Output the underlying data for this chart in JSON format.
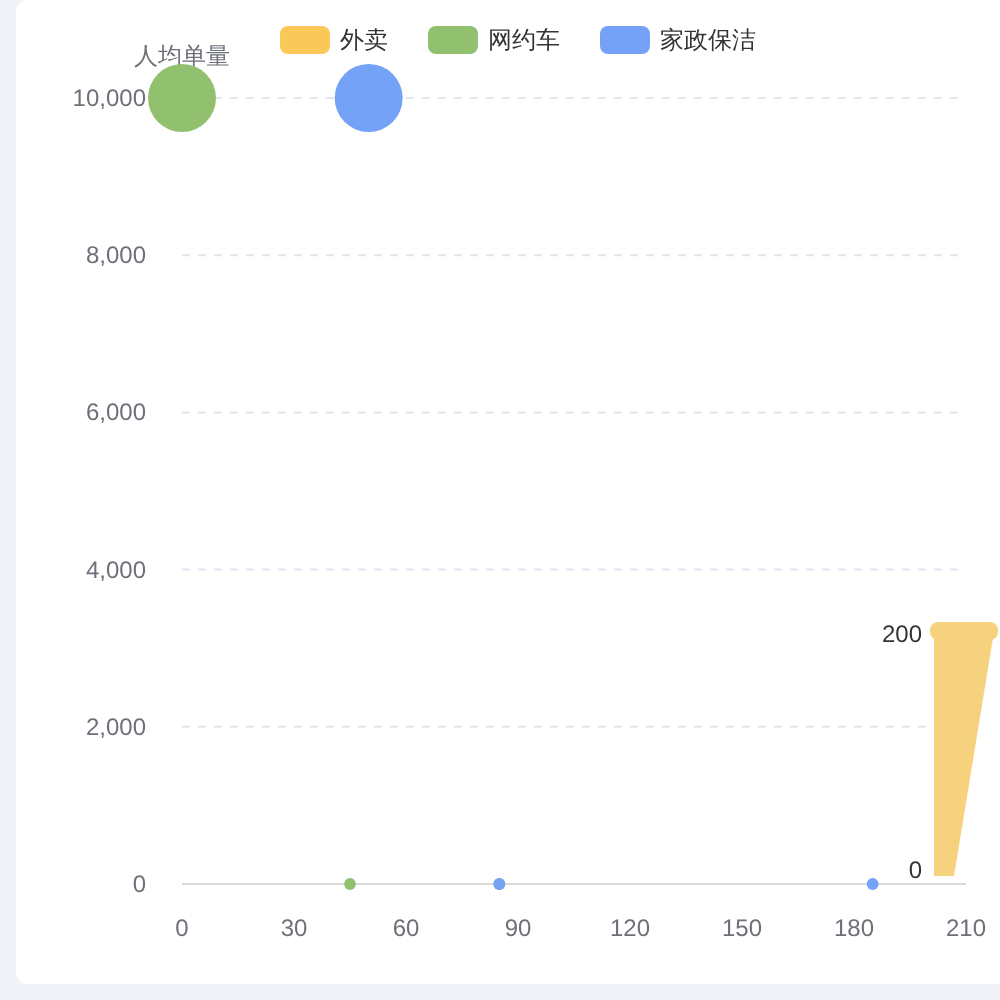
{
  "chart_data": {
    "type": "bubble",
    "ylabel": "人均单量",
    "xlim": [
      0,
      210
    ],
    "xticks": [
      0,
      30,
      60,
      90,
      120,
      150,
      180,
      210
    ],
    "ylim": [
      0,
      10000
    ],
    "yticks": [
      {
        "value": 0,
        "label": "0"
      },
      {
        "value": 2000,
        "label": "2,000"
      },
      {
        "value": 4000,
        "label": "4,000"
      },
      {
        "value": 6000,
        "label": "6,000"
      },
      {
        "value": 8000,
        "label": "8,000"
      },
      {
        "value": 10000,
        "label": "10,000"
      }
    ],
    "grid": "y",
    "legend": "top",
    "annotations": [
      "200",
      "0"
    ],
    "series": [
      {
        "name": "外卖",
        "color": "#fac858"
      },
      {
        "name": "网约车",
        "color": "#91c06f",
        "x": [
          0,
          45,
          85
        ],
        "values": [
          10000,
          0,
          0
        ],
        "sizes": [
          1,
          0.03,
          0.03
        ]
      },
      {
        "name": "家政保洁",
        "color": "#73a2f7",
        "x": [
          50,
          85,
          185
        ],
        "values": [
          10000,
          0,
          0
        ],
        "sizes": [
          1,
          0.03,
          0.03
        ]
      }
    ]
  }
}
